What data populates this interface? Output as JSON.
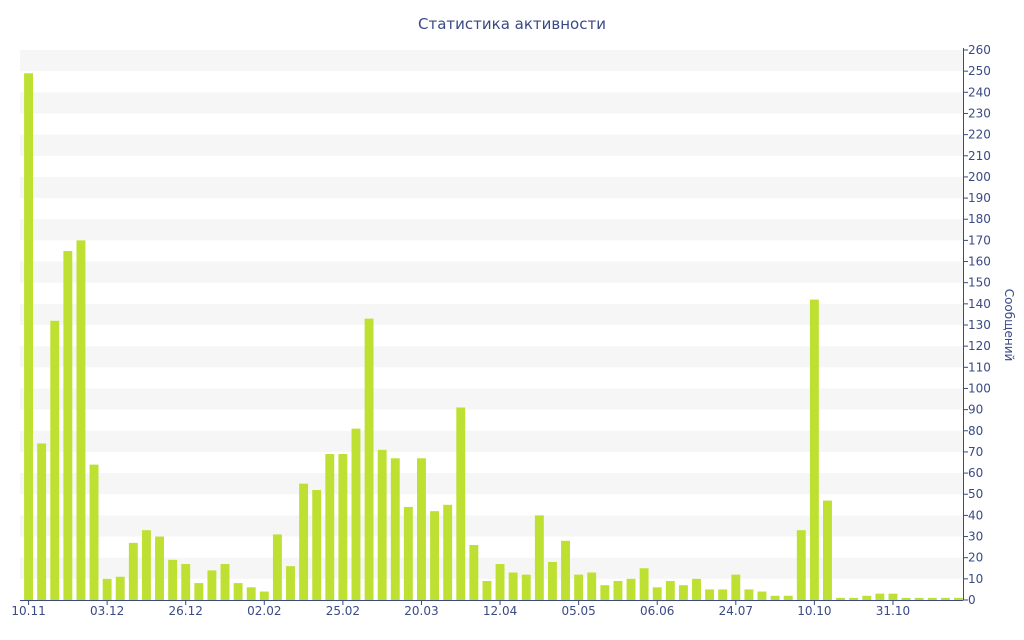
{
  "chart_data": {
    "type": "bar",
    "title": "Статистика активности",
    "ylabel": "Сообщений",
    "xlabel": "",
    "ylim": [
      0,
      260
    ],
    "y_ticks": [
      0,
      10,
      20,
      30,
      40,
      50,
      60,
      70,
      80,
      90,
      100,
      110,
      120,
      130,
      140,
      150,
      160,
      170,
      180,
      190,
      200,
      210,
      220,
      230,
      240,
      250,
      260
    ],
    "y_axis_side": "right",
    "grid": "horizontal alternating bands",
    "x_tick_labels": [
      {
        "index": 0,
        "label": "10.11"
      },
      {
        "index": 6,
        "label": "03.12"
      },
      {
        "index": 12,
        "label": "26.12"
      },
      {
        "index": 18,
        "label": "02.02"
      },
      {
        "index": 24,
        "label": "25.02"
      },
      {
        "index": 30,
        "label": "20.03"
      },
      {
        "index": 36,
        "label": "12.04"
      },
      {
        "index": 42,
        "label": "05.05"
      },
      {
        "index": 48,
        "label": "06.06"
      },
      {
        "index": 54,
        "label": "24.07"
      },
      {
        "index": 60,
        "label": "10.10"
      },
      {
        "index": 66,
        "label": "31.10"
      }
    ],
    "values": [
      249,
      74,
      132,
      165,
      170,
      64,
      10,
      11,
      27,
      33,
      30,
      19,
      17,
      8,
      14,
      17,
      8,
      6,
      4,
      31,
      16,
      55,
      52,
      69,
      69,
      81,
      133,
      71,
      67,
      44,
      67,
      42,
      45,
      91,
      26,
      9,
      17,
      13,
      12,
      40,
      18,
      28,
      12,
      13,
      7,
      9,
      10,
      15,
      6,
      9,
      7,
      10,
      5,
      5,
      12,
      5,
      4,
      2,
      2,
      33,
      142,
      47,
      1,
      1,
      2,
      3,
      3,
      1,
      1,
      1,
      1,
      1
    ],
    "colors": {
      "bar": "#bde032",
      "band": "#f6f6f6",
      "axis": "#3a4a85",
      "tick_text": "#3a4a85"
    }
  }
}
